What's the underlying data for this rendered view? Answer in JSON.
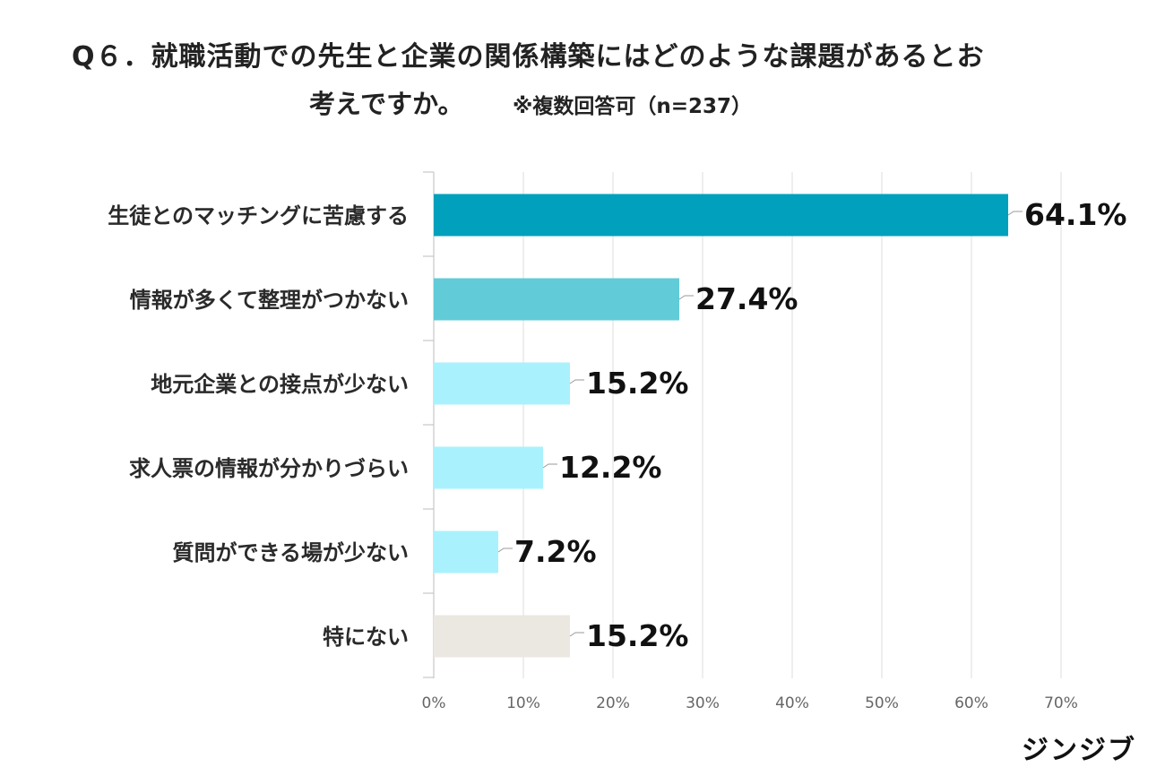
{
  "title_line1": "Q６．就職活動での先生と企業の関係構築にはどのような課題があるとお",
  "title_line2": "考えですか。",
  "note": "※複数回答可（n=237）",
  "brand": "ジンジブ",
  "colors": {
    "bar_primary": "#01a0bc",
    "bar_secondary": "#62cbd8",
    "bar_light": "#a9f2fd",
    "bar_none": "#ebe8e2",
    "grid": "#dcdcdc"
  },
  "chart_data": {
    "type": "bar",
    "orientation": "horizontal",
    "categories": [
      "生徒とのマッチングに苦慮する",
      "情報が多くて整理がつかない",
      "地元企業との接点が少ない",
      "求人票の情報が分かりづらい",
      "質問ができる場が少ない",
      "特にない"
    ],
    "values": [
      64.1,
      27.4,
      15.2,
      12.2,
      7.2,
      15.2
    ],
    "value_labels": [
      "64.1%",
      "27.4%",
      "15.2%",
      "12.2%",
      "7.2%",
      "15.2%"
    ],
    "bar_colors": [
      "#01a0bc",
      "#62cbd8",
      "#a9f2fd",
      "#a9f2fd",
      "#a9f2fd",
      "#ebe8e2"
    ],
    "xlim": [
      0,
      70
    ],
    "xticks": [
      "0%",
      "10%",
      "20%",
      "30%",
      "40%",
      "50%",
      "60%",
      "70%"
    ],
    "grid": true
  }
}
